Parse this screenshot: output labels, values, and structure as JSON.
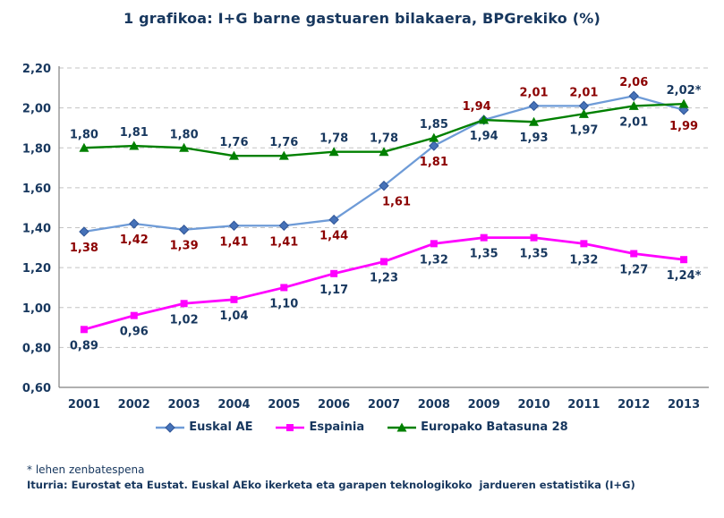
{
  "title": "1 grafikoa: I+G barne gastuaren bilakaera, BPGrekiko (%)",
  "colors": {
    "navy_text": "#17375E",
    "red_label": "#8B0000",
    "grid": "#C3C3C3",
    "axis": "#808080",
    "background": "#FFFFFF"
  },
  "footnotes": {
    "asterisk": "* lehen zenbatespena",
    "source": "Iturria: Eurostat eta Eustat. Euskal AEko ikerketa eta garapen teknologikoko  jardueren estatistika (I+G)"
  },
  "chart_data": {
    "type": "line",
    "title": "1 grafikoa: I+G barne gastuaren bilakaera, BPGrekiko (%)",
    "xlabel": "",
    "ylabel": "",
    "categories": [
      "2001",
      "2002",
      "2003",
      "2004",
      "2005",
      "2006",
      "2007",
      "2008",
      "2009",
      "2010",
      "2011",
      "2012",
      "2013"
    ],
    "ylim": [
      0.6,
      2.2
    ],
    "ytick_step": 0.2,
    "ytick_labels": [
      "0,60",
      "0,80",
      "1,00",
      "1,20",
      "1,40",
      "1,60",
      "1,80",
      "2,00",
      "2,20"
    ],
    "grid": "horizontal-dashed",
    "legend_position": "bottom",
    "note": "* lehen zenbatespena (values marked * are first estimates)",
    "series": [
      {
        "id": "euskal-ae",
        "name": "Euskal AE",
        "marker": "diamond",
        "color": "#6E9BD7",
        "marker_color": "#4672B8",
        "marker_stroke": "#2F5597",
        "label_color": "#8B0000",
        "line_width": 2.3,
        "values": [
          1.38,
          1.42,
          1.39,
          1.41,
          1.41,
          1.44,
          1.61,
          1.81,
          1.94,
          2.01,
          2.01,
          2.06,
          1.99
        ],
        "labels": [
          "1,38",
          "1,42",
          "1,39",
          "1,41",
          "1,41",
          "1,44",
          "1,61",
          "1,81",
          "1,94",
          "2,01",
          "2,01",
          "2,06",
          "1,99"
        ],
        "label_pos": [
          "below",
          "below",
          "below",
          "below",
          "below",
          "below",
          "below",
          "below",
          "above",
          "above",
          "above",
          "above",
          "below"
        ],
        "label_dx": [
          0,
          0,
          0,
          0,
          0,
          0,
          14,
          0,
          -8,
          0,
          0,
          0,
          0
        ]
      },
      {
        "id": "espainia",
        "name": "Espainia",
        "marker": "square",
        "color": "#FF00FF",
        "marker_color": "#FF00FF",
        "marker_stroke": "#FF00FF",
        "label_color": "#17375E",
        "line_width": 2.8,
        "values": [
          0.89,
          0.96,
          1.02,
          1.04,
          1.1,
          1.17,
          1.23,
          1.32,
          1.35,
          1.35,
          1.32,
          1.27,
          1.24
        ],
        "labels": [
          "0,89",
          "0,96",
          "1,02",
          "1,04",
          "1,10",
          "1,17",
          "1,23",
          "1,32",
          "1,35",
          "1,35",
          "1,32",
          "1,27",
          "1,24*"
        ],
        "label_pos": [
          "below",
          "below",
          "below",
          "below",
          "below",
          "below",
          "below",
          "below",
          "below",
          "below",
          "below",
          "below",
          "below"
        ],
        "label_dx": [
          0,
          0,
          0,
          0,
          0,
          0,
          0,
          0,
          0,
          0,
          0,
          0,
          0
        ]
      },
      {
        "id": "europako-batasuna-28",
        "name": "Europako Batasuna 28",
        "marker": "triangle",
        "color": "#008000",
        "marker_color": "#008000",
        "marker_stroke": "#006000",
        "label_color": "#17375E",
        "line_width": 2.4,
        "values": [
          1.8,
          1.81,
          1.8,
          1.76,
          1.76,
          1.78,
          1.78,
          1.85,
          1.94,
          1.93,
          1.97,
          2.01,
          2.02
        ],
        "labels": [
          "1,80",
          "1,81",
          "1,80",
          "1,76",
          "1,76",
          "1,78",
          "1,78",
          "1,85",
          "1,94",
          "1,93",
          "1,97",
          "2,01",
          "2,02*"
        ],
        "label_pos": [
          "above",
          "above",
          "above",
          "above",
          "above",
          "above",
          "above",
          "above",
          "below",
          "below",
          "below",
          "below",
          "above"
        ],
        "label_dx": [
          0,
          0,
          0,
          0,
          0,
          0,
          0,
          0,
          0,
          0,
          0,
          0,
          0
        ]
      }
    ]
  }
}
